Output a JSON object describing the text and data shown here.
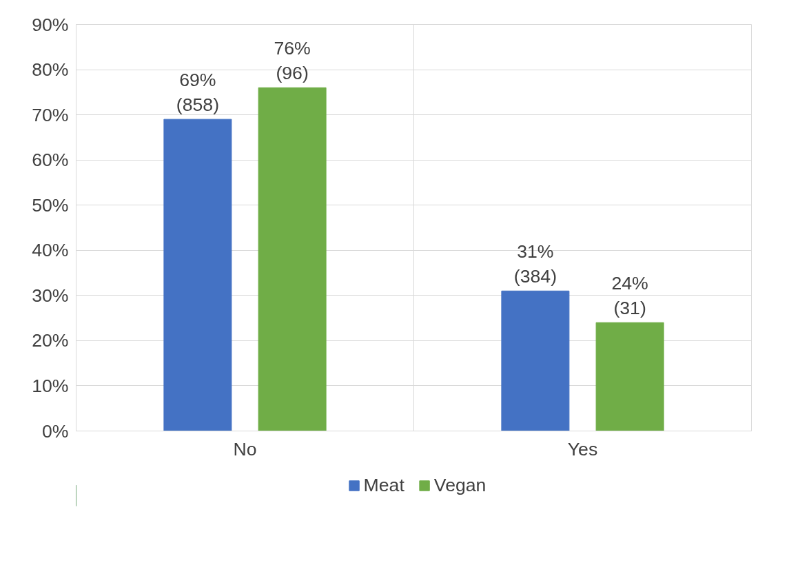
{
  "chart_data": {
    "type": "bar",
    "categories": [
      "No",
      "Yes"
    ],
    "series": [
      {
        "name": "Meat",
        "color": "#4472c4",
        "values": [
          69,
          31
        ],
        "value_labels": [
          "69%\n(858)",
          "31%\n(384)"
        ]
      },
      {
        "name": "Vegan",
        "color": "#70ad47",
        "values": [
          76,
          24
        ],
        "value_labels": [
          "76%\n(96)",
          "24%\n(31)"
        ]
      }
    ],
    "ylim": [
      0,
      90
    ],
    "yticks": [
      {
        "value": 0,
        "label": "0%"
      },
      {
        "value": 10,
        "label": "10%"
      },
      {
        "value": 20,
        "label": "20%"
      },
      {
        "value": 30,
        "label": "30%"
      },
      {
        "value": 40,
        "label": "40%"
      },
      {
        "value": 50,
        "label": "50%"
      },
      {
        "value": 60,
        "label": "60%"
      },
      {
        "value": 70,
        "label": "70%"
      },
      {
        "value": 80,
        "label": "80%"
      },
      {
        "value": 90,
        "label": "90%"
      }
    ],
    "grid": true,
    "legend": "bottom"
  }
}
